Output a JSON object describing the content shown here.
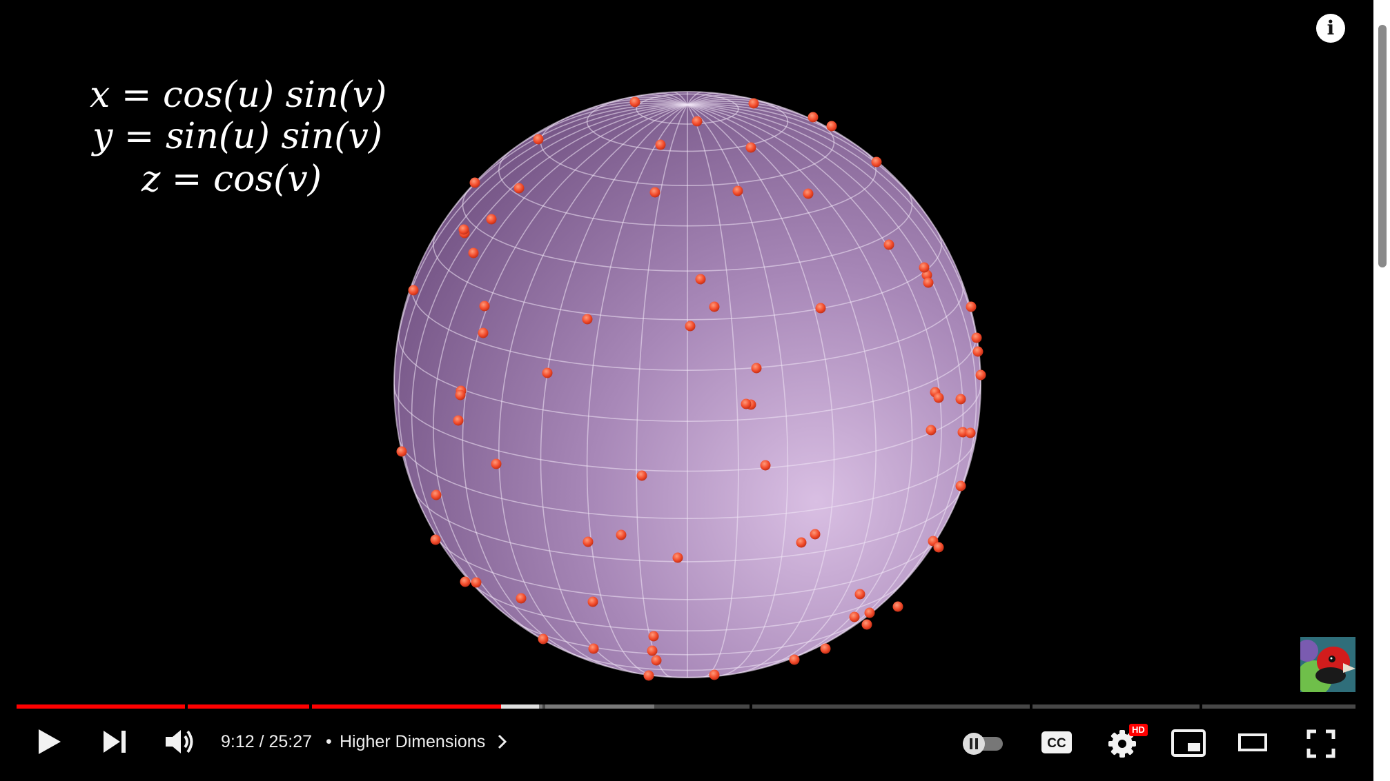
{
  "video": {
    "equations": {
      "x": "x = cos(u) sin(v)",
      "y": "y = sin(u) sin(v)",
      "z": "z = cos(v)"
    },
    "sphere_color": "#8e6a9c",
    "point_color": "#ff4a2a"
  },
  "controls": {
    "time": "9:12 / 25:27",
    "separator": "•",
    "chapter_title": "Higher Dimensions",
    "hd_badge": "HD",
    "icons": {
      "info": "info-icon",
      "play": "play-icon",
      "next": "next-icon",
      "volume": "volume-icon",
      "autoplay": "autoplay-toggle-icon",
      "captions": "cc-icon",
      "settings": "gear-icon",
      "miniplayer": "miniplayer-icon",
      "theater": "theater-mode-icon",
      "fullscreen": "fullscreen-icon"
    }
  },
  "progress": {
    "played_fraction": 0.362,
    "buffered_fraction": 0.39,
    "played_color": "#ff0000"
  }
}
